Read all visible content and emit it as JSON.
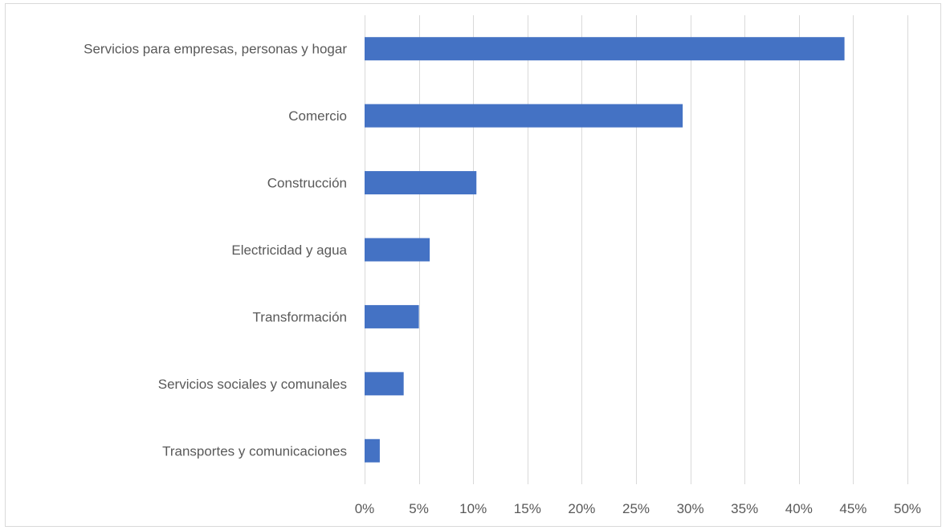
{
  "chart_data": {
    "type": "bar",
    "orientation": "horizontal",
    "title": "",
    "xlabel": "",
    "ylabel": "",
    "categories": [
      "Servicios para empresas, personas y hogar",
      "Comercio",
      "Construcción",
      "Electricidad y agua",
      "Transformación",
      "Servicios sociales y comunales",
      "Transportes y comunicaciones"
    ],
    "values": [
      0.442,
      0.293,
      0.103,
      0.06,
      0.05,
      0.036,
      0.014
    ],
    "xlim": [
      0,
      0.5
    ],
    "x_ticks": [
      0,
      0.05,
      0.1,
      0.15,
      0.2,
      0.25,
      0.3,
      0.35,
      0.4,
      0.45,
      0.5
    ],
    "x_tick_labels": [
      "0%",
      "5%",
      "10%",
      "15%",
      "20%",
      "25%",
      "30%",
      "35%",
      "40%",
      "45%",
      "50%"
    ],
    "grid": "vertical",
    "legend": "none",
    "bar_color": "#4472c4",
    "grid_color": "#d9d9d9",
    "text_color": "#595959"
  }
}
